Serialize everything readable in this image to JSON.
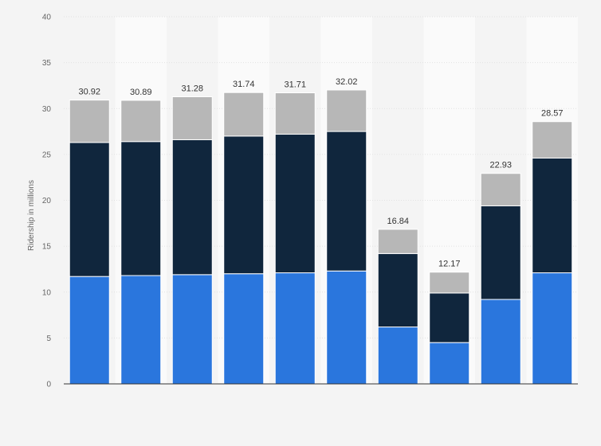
{
  "chart_data": {
    "type": "bar",
    "stacked": true,
    "title": "",
    "xlabel": "",
    "ylabel": "Ridership in millions",
    "ylim": [
      0,
      40
    ],
    "yticks": [
      0,
      5,
      10,
      15,
      20,
      25,
      30,
      35,
      40
    ],
    "grid": true,
    "legend": "none",
    "categories": [
      "",
      "",
      "",
      "",
      "",
      "",
      "",
      "",
      "",
      ""
    ],
    "series": [
      {
        "color": "#2a76dd",
        "values": [
          11.7,
          11.8,
          11.9,
          12.0,
          12.1,
          12.3,
          6.2,
          4.5,
          9.2,
          12.1
        ]
      },
      {
        "color": "#10263d",
        "values": [
          14.6,
          14.6,
          14.7,
          15.0,
          15.1,
          15.2,
          8.0,
          5.4,
          10.2,
          12.5
        ]
      },
      {
        "color": "#b7b7b7",
        "values": [
          4.62,
          4.49,
          4.68,
          4.74,
          4.51,
          4.52,
          2.64,
          2.27,
          3.53,
          3.97
        ]
      }
    ],
    "totals": [
      "30.92",
      "30.89",
      "31.28",
      "31.74",
      "31.71",
      "32.02",
      "16.84",
      "12.17",
      "22.93",
      "28.57"
    ]
  }
}
